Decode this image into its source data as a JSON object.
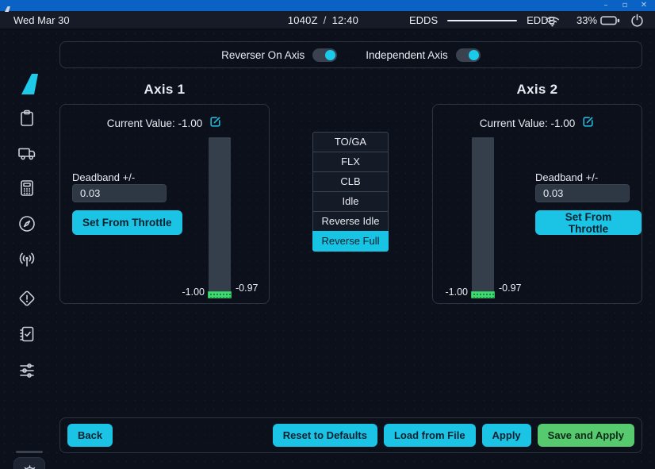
{
  "window": {
    "controls": {
      "minimize": "–",
      "maximize": "▫",
      "close": "✕"
    }
  },
  "statusbar": {
    "date": "Wed Mar 30",
    "utc_time": "1040Z",
    "time_separator": "/",
    "local_time": "12:40",
    "route": {
      "origin": "EDDS",
      "destination": "EDDB"
    },
    "battery_percent": "33%"
  },
  "sidebar": {
    "icons": [
      "fin-logo-icon",
      "clipboard-icon",
      "truck-icon",
      "calculator-icon",
      "compass-icon",
      "broadcast-icon",
      "warning-diamond-icon",
      "checklist-icon",
      "sliders-icon",
      "gear-icon"
    ]
  },
  "header_toggles": [
    {
      "label": "Reverser On Axis",
      "state": "on"
    },
    {
      "label": "Independent Axis",
      "state": "on"
    }
  ],
  "axes": [
    {
      "title": "Axis 1",
      "current_value_label": "Current Value:",
      "current_value": "-1.00",
      "deadband_label": "Deadband +/-",
      "deadband_value": "0.03",
      "set_from_throttle_label": "Set From Throttle",
      "bar_bottom_value": "-1.00",
      "bar_deadband_value": "-0.97"
    },
    {
      "title": "Axis 2",
      "current_value_label": "Current Value:",
      "current_value": "-1.00",
      "deadband_label": "Deadband +/-",
      "deadband_value": "0.03",
      "set_from_throttle_label": "Set From Throttle",
      "bar_bottom_value": "-1.00",
      "bar_deadband_value": "-0.97"
    }
  ],
  "detents": {
    "items": [
      {
        "label": "TO/GA",
        "selected": false
      },
      {
        "label": "FLX",
        "selected": false
      },
      {
        "label": "CLB",
        "selected": false
      },
      {
        "label": "Idle",
        "selected": false
      },
      {
        "label": "Reverse Idle",
        "selected": false
      },
      {
        "label": "Reverse Full",
        "selected": true
      }
    ]
  },
  "footer": {
    "back": "Back",
    "reset": "Reset to Defaults",
    "load": "Load from File",
    "apply": "Apply",
    "save_apply": "Save and Apply"
  },
  "colors": {
    "titlebar_blue": "#0a63c4",
    "accent_cyan": "#1bc4e4",
    "accent_green": "#57c96e",
    "deadband_green": "#41da70",
    "background": "#0c101b"
  }
}
